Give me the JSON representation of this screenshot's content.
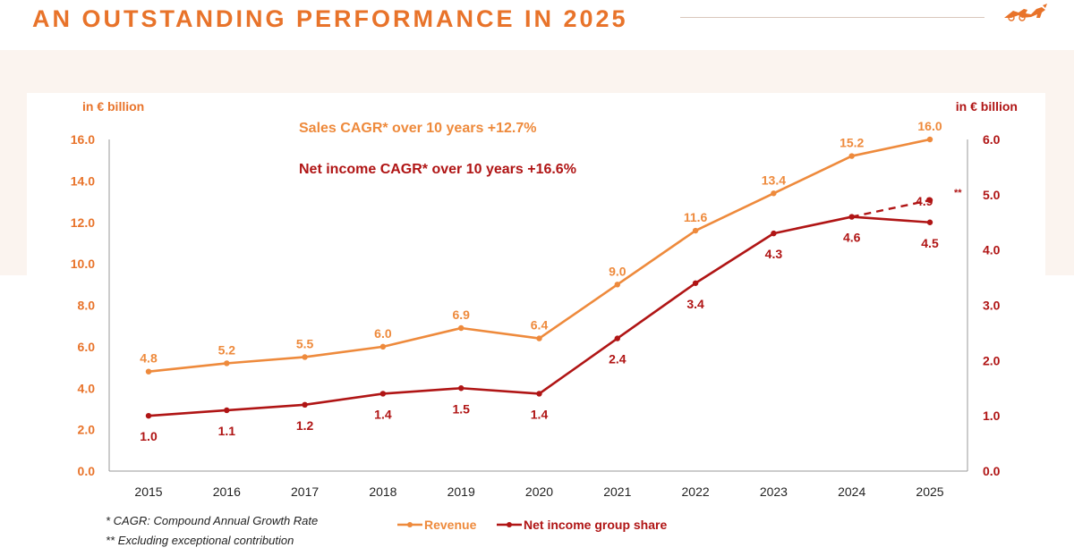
{
  "page": {
    "title": "AN OUTSTANDING PERFORMANCE IN 2025"
  },
  "colors": {
    "title": "#e8732a",
    "revenue": "#ee8a3c",
    "net_income": "#b01515",
    "axis_text": "#b01515",
    "band": "#fbf4ef"
  },
  "chart_data": {
    "type": "line",
    "categories": [
      "2015",
      "2016",
      "2017",
      "2018",
      "2019",
      "2020",
      "2021",
      "2022",
      "2023",
      "2024",
      "2025"
    ],
    "series": [
      {
        "name": "Revenue",
        "axis": "left",
        "values": [
          4.8,
          5.2,
          5.5,
          6.0,
          6.9,
          6.4,
          9.0,
          11.6,
          13.4,
          15.2,
          16.0
        ],
        "labels": [
          "4.8",
          "5.2",
          "5.5",
          "6.0",
          "6.9",
          "6.4",
          "9.0",
          "11.6",
          "13.4",
          "15.2",
          "16.0"
        ]
      },
      {
        "name": "Net income group share",
        "axis": "right",
        "values": [
          1.0,
          1.1,
          1.2,
          1.4,
          1.5,
          1.4,
          2.4,
          3.4,
          4.3,
          4.6,
          4.5
        ],
        "labels": [
          "1.0",
          "1.1",
          "1.2",
          "1.4",
          "1.5",
          "1.4",
          "2.4",
          "3.4",
          "4.3",
          "4.6",
          "4.5"
        ]
      }
    ],
    "adjusted_point": {
      "series": "Net income group share",
      "category": "2025",
      "value": 4.9,
      "label": "4.9",
      "marker": "**"
    },
    "left_axis": {
      "label": "in € billion",
      "min": 0,
      "max": 16,
      "step": 2,
      "ticks": [
        "0.0",
        "2.0",
        "4.0",
        "6.0",
        "8.0",
        "10.0",
        "12.0",
        "14.0",
        "16.0"
      ]
    },
    "right_axis": {
      "label": "in € billion",
      "min": 0,
      "max": 6,
      "step": 1,
      "ticks": [
        "0.0",
        "1.0",
        "2.0",
        "3.0",
        "4.0",
        "5.0",
        "6.0"
      ]
    },
    "annotations": [
      "Sales CAGR* over 10 years +12.7%",
      "Net income CAGR* over 10 years +16.6%"
    ],
    "legend": [
      "Revenue",
      "Net income group share"
    ],
    "legend_position": "bottom-center"
  },
  "footnotes": [
    "* CAGR: Compound Annual Growth Rate",
    "** Excluding exceptional contribution"
  ]
}
